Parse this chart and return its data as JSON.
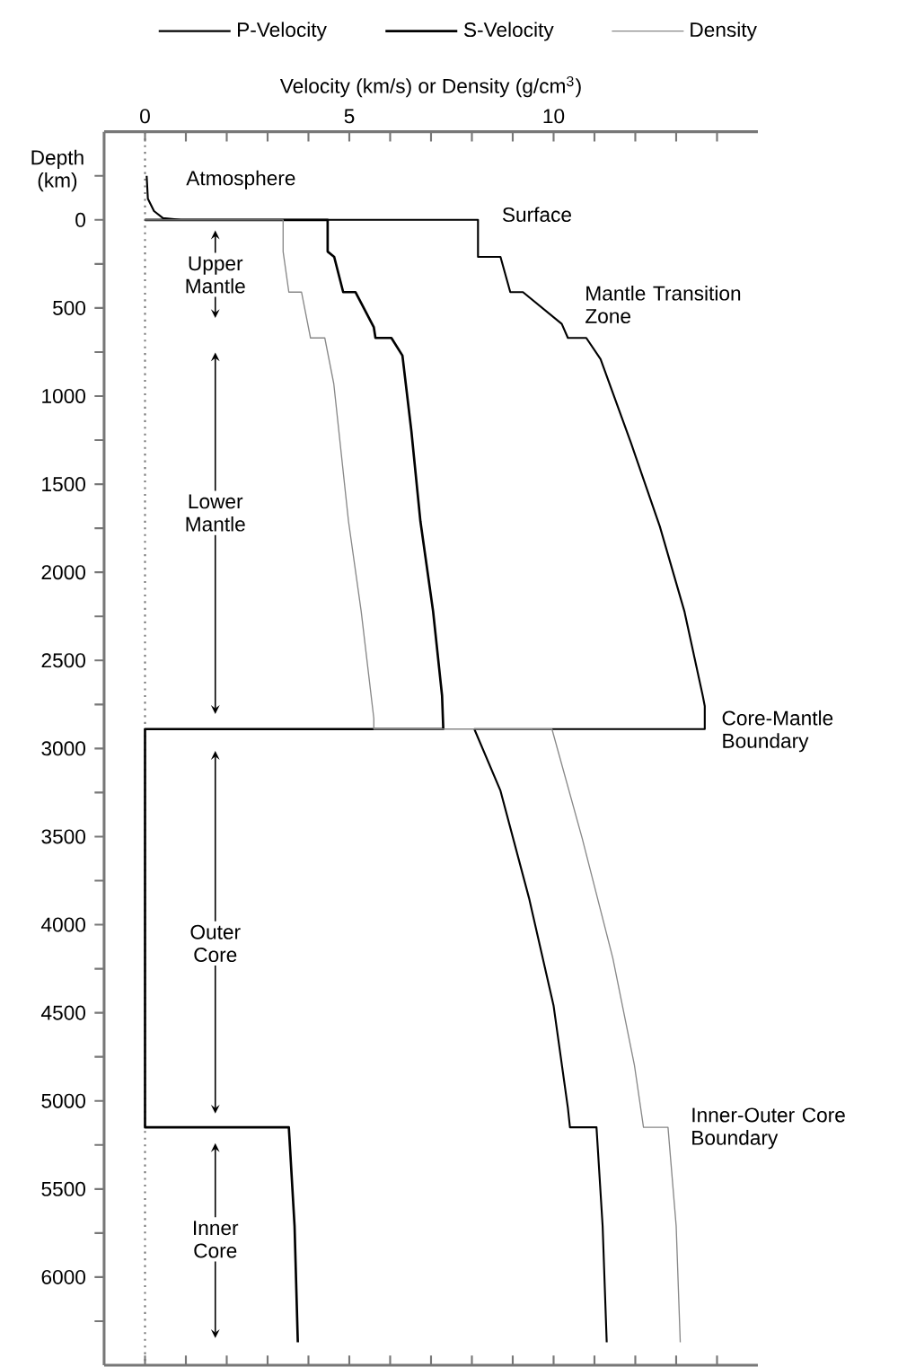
{
  "chart_data": {
    "type": "line",
    "xlabel": "Velocity (km/s) or Density (g/cm$^{3}$)",
    "ylabel": "Depth (km)",
    "xlim": [
      -1,
      15
    ],
    "ylim": [
      6500,
      -500
    ],
    "xticks": [
      0,
      {
        "value": 1,
        "label": null
      },
      {
        "value": 2,
        "label": null
      },
      {
        "value": 3,
        "label": null
      },
      {
        "value": 4,
        "label": null
      },
      5,
      {
        "value": 6,
        "label": null
      },
      {
        "value": 7,
        "label": null
      },
      {
        "value": 8,
        "label": null
      },
      {
        "value": 9,
        "label": null
      },
      10,
      {
        "value": 11,
        "label": null
      },
      {
        "value": 12,
        "label": null
      },
      {
        "value": 13,
        "label": null
      },
      {
        "value": 14,
        "label": null
      }
    ],
    "yticks": [
      {
        "value": -250,
        "label": null
      },
      0,
      {
        "value": 250,
        "label": null
      },
      500,
      {
        "value": 750,
        "label": null
      },
      1000,
      {
        "value": 1250,
        "label": null
      },
      1500,
      {
        "value": 1750,
        "label": null
      },
      2000,
      {
        "value": 2250,
        "label": null
      },
      2500,
      {
        "value": 2750,
        "label": null
      },
      3000,
      {
        "value": 3250,
        "label": null
      },
      3500,
      {
        "value": 3750,
        "label": null
      },
      4000,
      {
        "value": 4250,
        "label": null
      },
      4500,
      {
        "value": 4750,
        "label": null
      },
      5000,
      {
        "value": 5250,
        "label": null
      },
      5500,
      {
        "value": 5750,
        "label": null
      },
      6000,
      {
        "value": 6250,
        "label": null
      }
    ],
    "legend": "top",
    "grid": false,
    "marker": "none",
    "line_style": "solid",
    "series": [
      {
        "name": "P-Velocity",
        "color": "#000000",
        "x": [
          0.04,
          0.07,
          0.22,
          0.44,
          0.88,
          8.15,
          8.15,
          8.7,
          8.94,
          9.25,
          10.2,
          10.35,
          10.8,
          11.15,
          11.9,
          12.6,
          13.2,
          13.65,
          13.7,
          13.7,
          8.06,
          8.7,
          9.4,
          10.0,
          10.35,
          10.4,
          11.05,
          11.2,
          11.3
        ],
        "values": [
          -250,
          -120,
          -50,
          -10,
          0,
          0,
          210,
          210,
          410,
          410,
          590,
          670,
          670,
          790,
          1270,
          1740,
          2220,
          2700,
          2760,
          2890,
          2890,
          3240,
          3850,
          4460,
          5040,
          5150,
          5150,
          5710,
          6370
        ]
      },
      {
        "name": "S-Velocity",
        "color": "#000000",
        "x": [
          0,
          4.47,
          4.47,
          4.63,
          4.85,
          5.15,
          5.6,
          5.64,
          6.03,
          6.3,
          6.52,
          6.74,
          7.05,
          7.27,
          7.3,
          0,
          0,
          3.52,
          3.66,
          3.74
        ],
        "values": [
          0,
          0,
          180,
          210,
          410,
          410,
          610,
          670,
          670,
          770,
          1200,
          1710,
          2220,
          2700,
          2890,
          2890,
          5150,
          5150,
          5710,
          6370
        ]
      },
      {
        "name": "Density",
        "color": "#888888",
        "x": [
          0,
          3.38,
          3.38,
          3.52,
          3.83,
          4.05,
          4.4,
          4.62,
          4.98,
          5.29,
          5.6,
          5.6,
          9.96,
          10.7,
          11.45,
          11.98,
          12.2,
          12.8,
          13.0,
          13.1
        ],
        "values": [
          0,
          0,
          180,
          410,
          410,
          670,
          670,
          930,
          1710,
          2220,
          2830,
          2890,
          2890,
          3510,
          4190,
          4800,
          5150,
          5150,
          5710,
          6370
        ]
      }
    ],
    "ref_lines": [
      {
        "axis": "x",
        "value": 0,
        "color": "#777777",
        "line_style": "dotted"
      }
    ],
    "annotations": [
      "Atmosphere",
      "Surface",
      "Upper Mantle",
      "Mantle Transition Zone",
      "Lower Mantle",
      "Core-Mantle Boundary",
      "Outer Core",
      "Inner-Outer Core Boundary",
      "Inner Core"
    ]
  }
}
